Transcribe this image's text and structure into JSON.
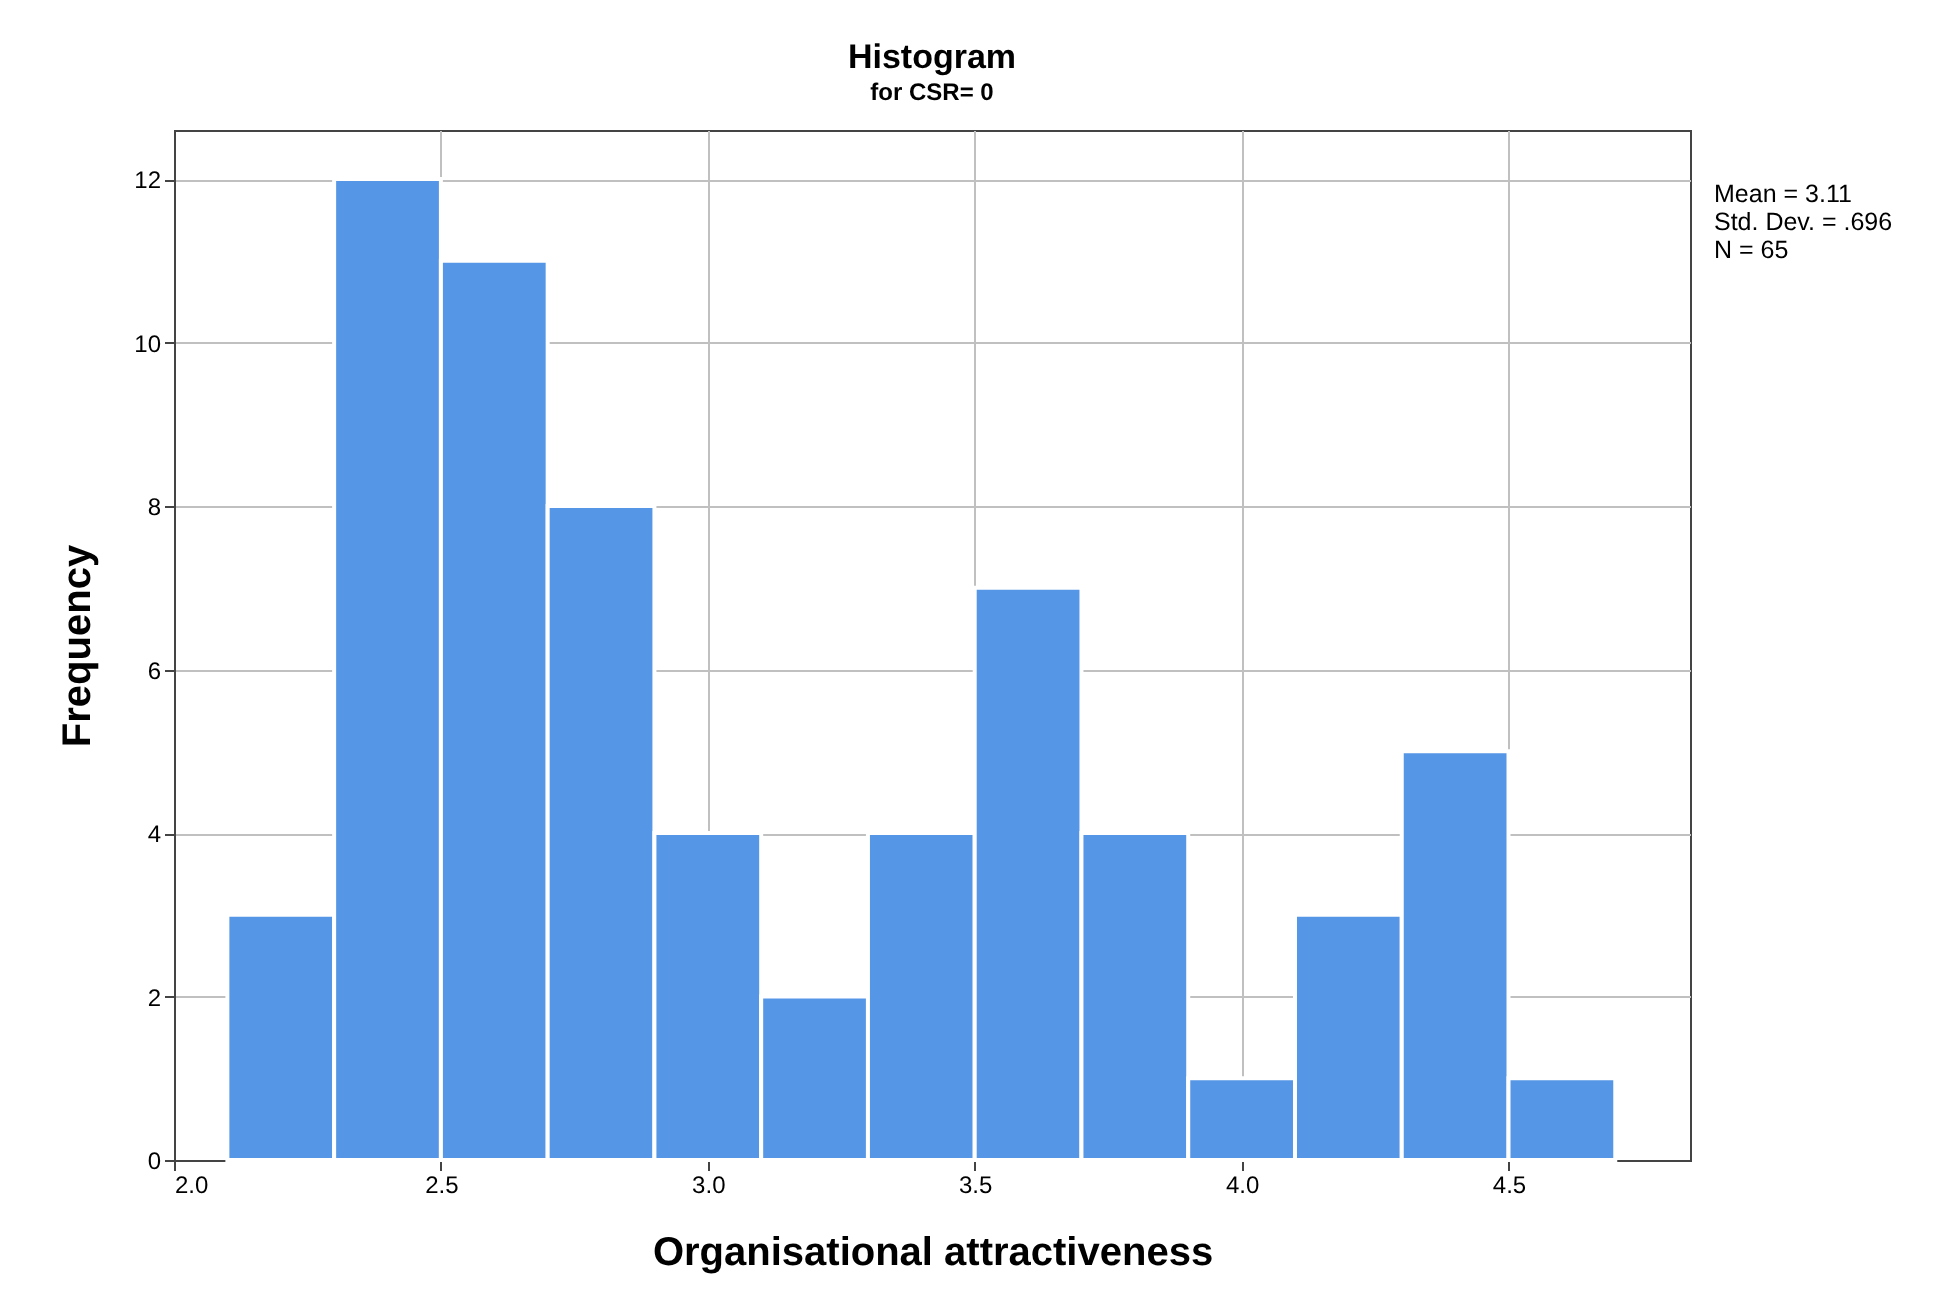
{
  "chart_data": {
    "type": "histogram",
    "title": "Histogram",
    "subtitle": "for CSR= 0",
    "xlabel": "Organisational attractiveness",
    "ylabel": "Frequency",
    "bins": [
      2.1,
      2.3,
      2.5,
      2.7,
      2.9,
      3.1,
      3.3,
      3.5,
      3.7,
      3.9,
      4.1,
      4.3,
      4.5,
      4.7
    ],
    "values": [
      3,
      12,
      11,
      8,
      4,
      2,
      4,
      7,
      4,
      1,
      3,
      5,
      1
    ],
    "color": "#5596e6",
    "xlim": [
      2.0,
      4.84
    ],
    "xticks": [
      {
        "value": 2.0,
        "label": "2.0"
      },
      {
        "value": 2.5,
        "label": "2.5"
      },
      {
        "value": 3.0,
        "label": "3.0"
      },
      {
        "value": 3.5,
        "label": "3.5"
      },
      {
        "value": 4.0,
        "label": "4.0"
      },
      {
        "value": 4.5,
        "label": "4.5"
      }
    ],
    "ylim": [
      0,
      12.6
    ],
    "yticks": [
      0,
      2,
      4,
      6,
      8,
      10,
      12
    ],
    "grid": true,
    "annotations": [
      "Mean = 3.11",
      "Std. Dev. = .696",
      "N = 65"
    ]
  }
}
